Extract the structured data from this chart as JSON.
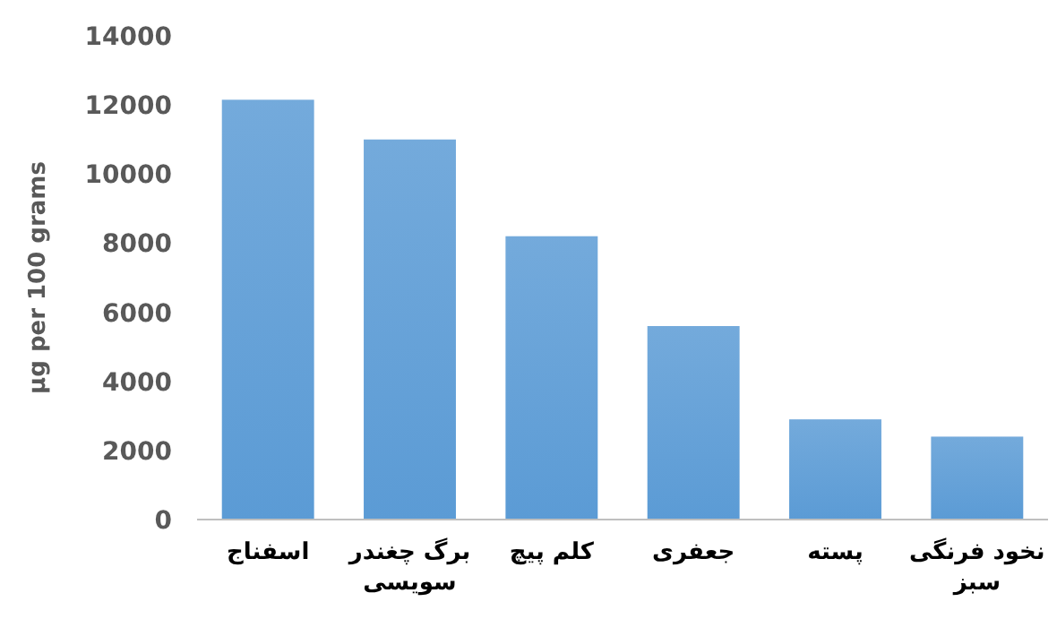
{
  "chart_data": {
    "type": "bar",
    "ylabel": "µg per 100 grams",
    "categories": [
      "اسفناج",
      "برگ چغندر سویسی",
      "کلم پیچ",
      "جعفری",
      "پسته",
      "نخود فرنگی سبز"
    ],
    "values": [
      12150,
      11000,
      8200,
      5600,
      2900,
      2400
    ],
    "color": "#5b9bd5",
    "ylim": [
      0,
      14000
    ],
    "yticks": [
      0,
      2000,
      4000,
      6000,
      8000,
      10000,
      12000,
      14000
    ],
    "grid": false
  }
}
